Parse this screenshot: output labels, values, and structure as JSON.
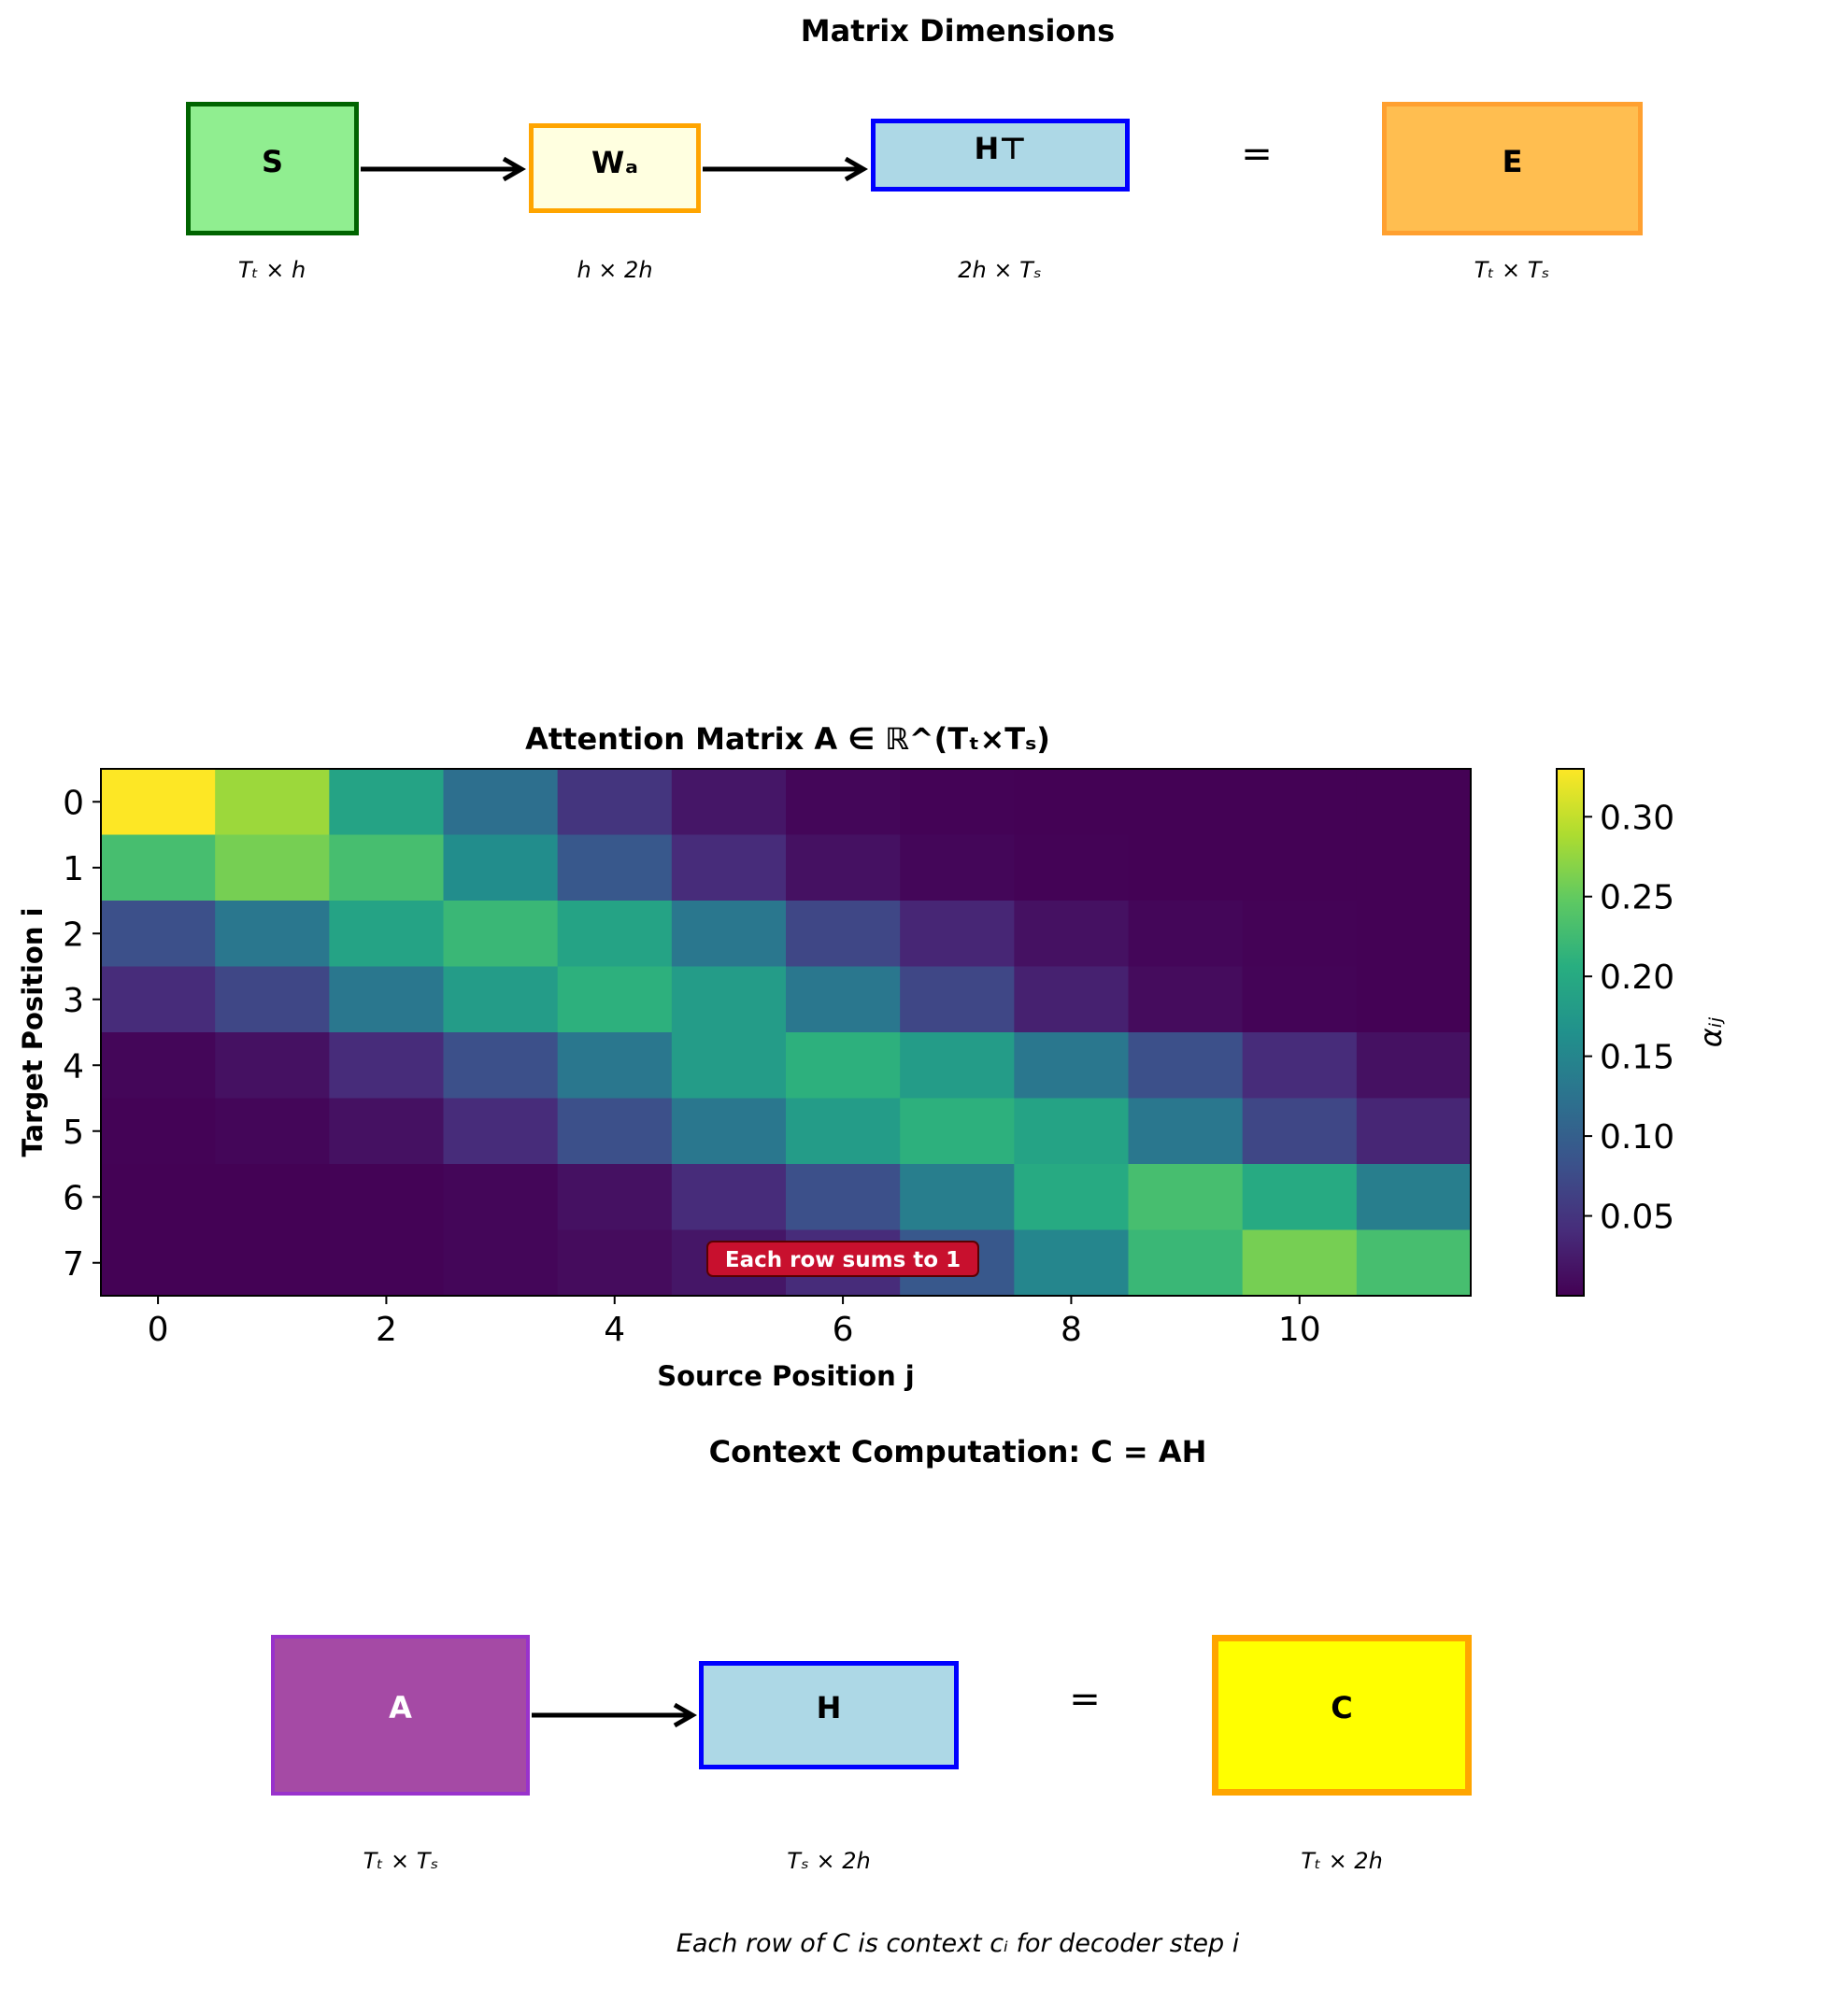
{
  "section1": {
    "title": "Matrix Dimensions",
    "boxes": [
      {
        "label": "S",
        "dim": "Tₜ × h"
      },
      {
        "label": "Wₐ",
        "dim": "h × 2h"
      },
      {
        "label": "H⊤",
        "dim": "2h × Tₛ"
      },
      {
        "label": "E",
        "dim": "Tₜ × Tₛ"
      }
    ],
    "equals": "="
  },
  "chart_data": {
    "type": "heatmap",
    "title": "Attention Matrix A ∈ ℝ^(Tₜ×Tₛ)",
    "xlabel": "Source Position j",
    "ylabel": "Target Position i",
    "x_ticks": [
      "0",
      "2",
      "4",
      "6",
      "8",
      "10"
    ],
    "y_ticks": [
      "0",
      "1",
      "2",
      "3",
      "4",
      "5",
      "6",
      "7"
    ],
    "colorbar_label": "αᵢⱼ",
    "colorbar_ticks": [
      "0.05",
      "0.10",
      "0.15",
      "0.20",
      "0.25",
      "0.30"
    ],
    "colormap": "viridis",
    "vmin": 0.0,
    "vmax": 0.33,
    "annotation": "Each row sums to 1",
    "annotation_color": "#c8102e",
    "values": [
      [
        0.33,
        0.28,
        0.19,
        0.12,
        0.05,
        0.02,
        0.005,
        0.002,
        0.001,
        0.001,
        0.001,
        0.001
      ],
      [
        0.23,
        0.26,
        0.23,
        0.16,
        0.09,
        0.04,
        0.015,
        0.005,
        0.002,
        0.001,
        0.001,
        0.001
      ],
      [
        0.08,
        0.13,
        0.19,
        0.22,
        0.19,
        0.13,
        0.07,
        0.035,
        0.015,
        0.005,
        0.002,
        0.001
      ],
      [
        0.04,
        0.07,
        0.13,
        0.18,
        0.21,
        0.18,
        0.13,
        0.07,
        0.03,
        0.01,
        0.003,
        0.001
      ],
      [
        0.005,
        0.015,
        0.04,
        0.08,
        0.13,
        0.18,
        0.21,
        0.18,
        0.13,
        0.08,
        0.04,
        0.015
      ],
      [
        0.002,
        0.005,
        0.015,
        0.04,
        0.08,
        0.13,
        0.18,
        0.21,
        0.19,
        0.13,
        0.07,
        0.035
      ],
      [
        0.001,
        0.001,
        0.002,
        0.005,
        0.015,
        0.04,
        0.08,
        0.14,
        0.2,
        0.23,
        0.2,
        0.14
      ],
      [
        0.001,
        0.001,
        0.002,
        0.005,
        0.01,
        0.02,
        0.04,
        0.09,
        0.15,
        0.22,
        0.26,
        0.23
      ]
    ]
  },
  "section3": {
    "title": "Context Computation: C = AH",
    "boxes": [
      {
        "label": "A",
        "dim": "Tₜ × Tₛ"
      },
      {
        "label": "H",
        "dim": "Tₛ × 2h"
      },
      {
        "label": "C",
        "dim": "Tₜ × 2h"
      }
    ],
    "equals": "=",
    "caption": "Each row of C is context cᵢ for decoder step i"
  },
  "colors": {
    "S_fill": "#90ee90",
    "S_edge": "#006400",
    "Wa_fill": "#ffffe0",
    "Wa_edge": "#ffa500",
    "H_fill": "#add8e6",
    "H_edge": "#0000ff",
    "E_fill": "#ffbe50",
    "E_edge": "#ffa030",
    "A_fill": "#a54aa5",
    "A_edge": "#9932cc",
    "C_fill": "#ffff00",
    "C_edge": "#ffa500"
  }
}
